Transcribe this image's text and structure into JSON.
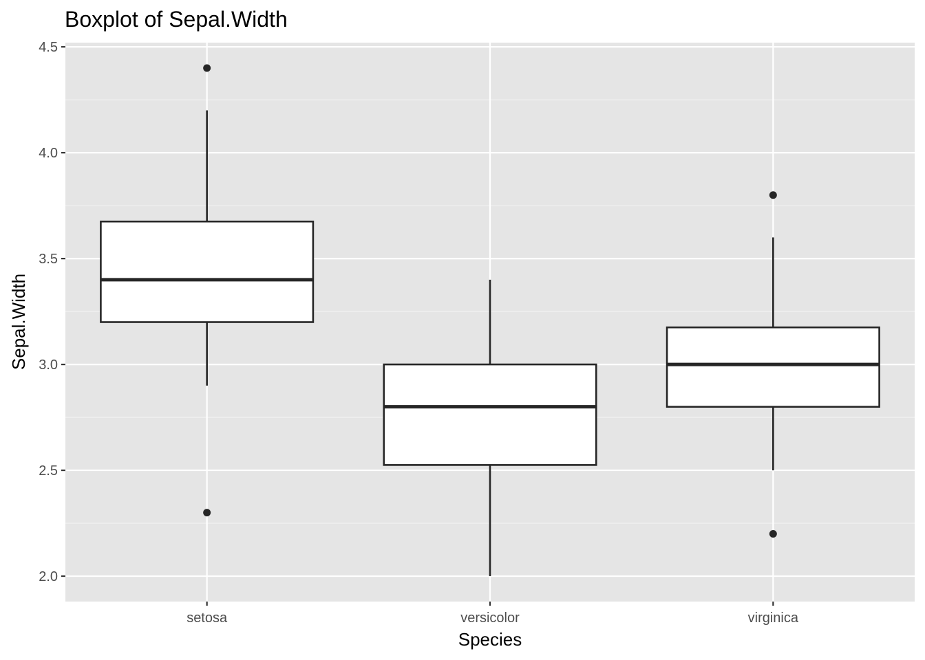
{
  "chart_data": {
    "type": "boxplot",
    "title": "Boxplot of Sepal.Width",
    "xlabel": "Species",
    "ylabel": "Sepal.Width",
    "categories": [
      "setosa",
      "versicolor",
      "virginica"
    ],
    "ylim": [
      1.88,
      4.52
    ],
    "y_ticks": [
      2.0,
      2.5,
      3.0,
      3.5,
      4.0,
      4.5
    ],
    "y_tick_labels": [
      "2.0",
      "2.5",
      "3.0",
      "3.5",
      "4.0",
      "4.5"
    ],
    "boxes": [
      {
        "category": "setosa",
        "whisker_low": 2.9,
        "q1": 3.2,
        "median": 3.4,
        "q3": 3.675,
        "whisker_high": 4.2,
        "outliers": [
          4.4,
          2.3
        ]
      },
      {
        "category": "versicolor",
        "whisker_low": 2.0,
        "q1": 2.525,
        "median": 2.8,
        "q3": 3.0,
        "whisker_high": 3.4,
        "outliers": []
      },
      {
        "category": "virginica",
        "whisker_low": 2.5,
        "q1": 2.8,
        "median": 3.0,
        "q3": 3.175,
        "whisker_high": 3.6,
        "outliers": [
          3.8,
          2.2
        ]
      }
    ],
    "grid": true,
    "colors": {
      "panel": "#e5e5e5",
      "grid_major": "#ffffff",
      "grid_minor": "#f2f2f2",
      "box_fill": "#ffffff",
      "box_stroke": "#262626",
      "tick": "#333333"
    }
  }
}
